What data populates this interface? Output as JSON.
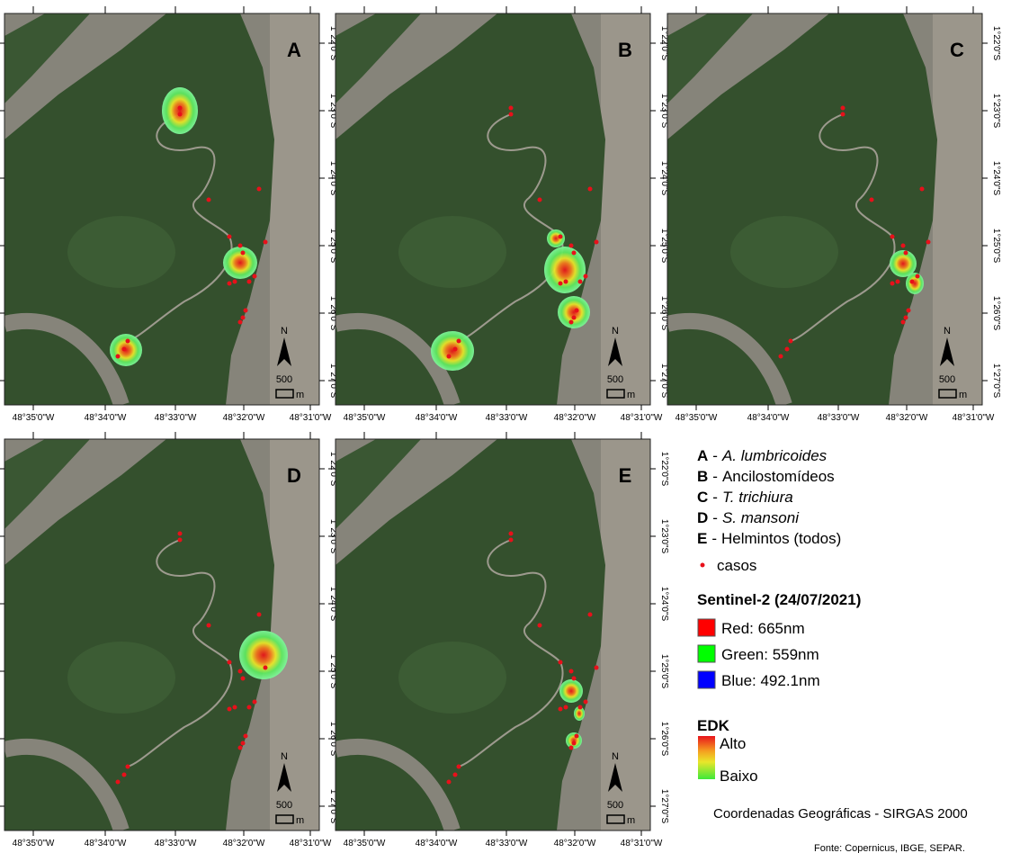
{
  "panels": [
    {
      "letter": "A"
    },
    {
      "letter": "B"
    },
    {
      "letter": "C"
    },
    {
      "letter": "D"
    },
    {
      "letter": "E"
    }
  ],
  "longitude_ticks": [
    "48°35'0\"W",
    "48°34'0\"W",
    "48°33'0\"W",
    "48°32'0\"W",
    "48°31'0\"W"
  ],
  "latitude_ticks": [
    "1°22'0\"S",
    "1°23'0\"S",
    "1°24'0\"S",
    "1°25'0\"S",
    "1°26'0\"S",
    "1°27'0\"S"
  ],
  "north": "N",
  "scale": {
    "length": "500",
    "unit": "m"
  },
  "legend": {
    "items": [
      {
        "letter": "A",
        "dash": "-",
        "name": "A. lumbricoides",
        "italic": true
      },
      {
        "letter": "B",
        "dash": "-",
        "name": "Ancilostomídeos",
        "italic": false
      },
      {
        "letter": "C",
        "dash": "-",
        "name": "T. trichiura",
        "italic": true
      },
      {
        "letter": "D",
        "dash": "-",
        "name": "S. mansoni",
        "italic": true
      },
      {
        "letter": "E",
        "dash": "-",
        "name": "Helmintos (todos)",
        "italic": false
      }
    ],
    "cases": "casos",
    "satellite": {
      "title": "Sentinel-2 (24/07/2021)",
      "bands": [
        {
          "label": "Red: 665nm",
          "color": "#ff0000"
        },
        {
          "label": "Green: 559nm",
          "color": "#00ff00"
        },
        {
          "label": "Blue: 492.1nm",
          "color": "#0000ff"
        }
      ]
    },
    "density": {
      "title": "EDK",
      "high": "Alto",
      "low": "Baixo"
    },
    "crs": "Coordenadas Geográficas - SIRGAS 2000",
    "source": "Fonte: Copernicus, IBGE, SEPAR."
  }
}
